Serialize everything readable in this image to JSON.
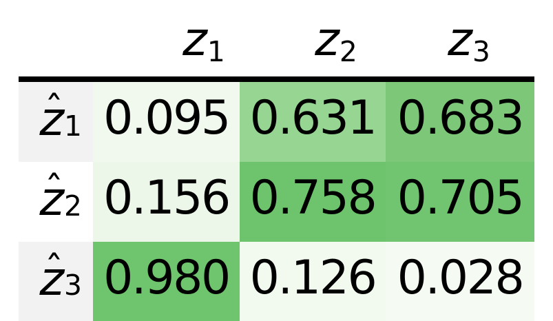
{
  "figure": {
    "kind": "correlation-matrix-heatmap",
    "hat_char": "ˆ",
    "text_color": "#000000",
    "rule_color": "#000000"
  },
  "table": {
    "col_headers": [
      {
        "base": "z",
        "sub": "1"
      },
      {
        "base": "z",
        "sub": "2"
      },
      {
        "base": "z",
        "sub": "3"
      }
    ],
    "rows": [
      {
        "label": {
          "base": "z",
          "sub": "1",
          "hatted": true
        },
        "label_bg": "#f2f2f2",
        "cells": [
          {
            "value": "0.095",
            "bg": "#f1f8ee"
          },
          {
            "value": "0.631",
            "bg": "#97d593"
          },
          {
            "value": "0.683",
            "bg": "#7cc878"
          }
        ]
      },
      {
        "label": {
          "base": "z",
          "sub": "2",
          "hatted": true
        },
        "label_bg": "#ffffff",
        "cells": [
          {
            "value": "0.156",
            "bg": "#edf7e9"
          },
          {
            "value": "0.758",
            "bg": "#6ec46d"
          },
          {
            "value": "0.705",
            "bg": "#71c470"
          }
        ]
      },
      {
        "label": {
          "base": "z",
          "sub": "3",
          "hatted": true
        },
        "label_bg": "#f2f2f2",
        "cells": [
          {
            "value": "0.980",
            "bg": "#6fc56e"
          },
          {
            "value": "0.126",
            "bg": "#f2f9ef"
          },
          {
            "value": "0.028",
            "bg": "#f5faf3"
          }
        ]
      }
    ]
  },
  "chart_data": {
    "type": "heatmap",
    "title": "",
    "col_labels": [
      "z_1",
      "z_2",
      "z_3"
    ],
    "row_labels": [
      "zhat_1",
      "zhat_2",
      "zhat_3"
    ],
    "values": [
      [
        0.095,
        0.631,
        0.683
      ],
      [
        0.156,
        0.758,
        0.705
      ],
      [
        0.98,
        0.126,
        0.028
      ]
    ],
    "value_range": [
      0,
      1
    ],
    "colormap": "Greens",
    "grid": false,
    "legend": "none",
    "cell_colors": [
      [
        "#f1f8ee",
        "#97d593",
        "#7cc878"
      ],
      [
        "#edf7e9",
        "#6ec46d",
        "#71c470"
      ],
      [
        "#6fc56e",
        "#f2f9ef",
        "#f5faf3"
      ]
    ]
  }
}
